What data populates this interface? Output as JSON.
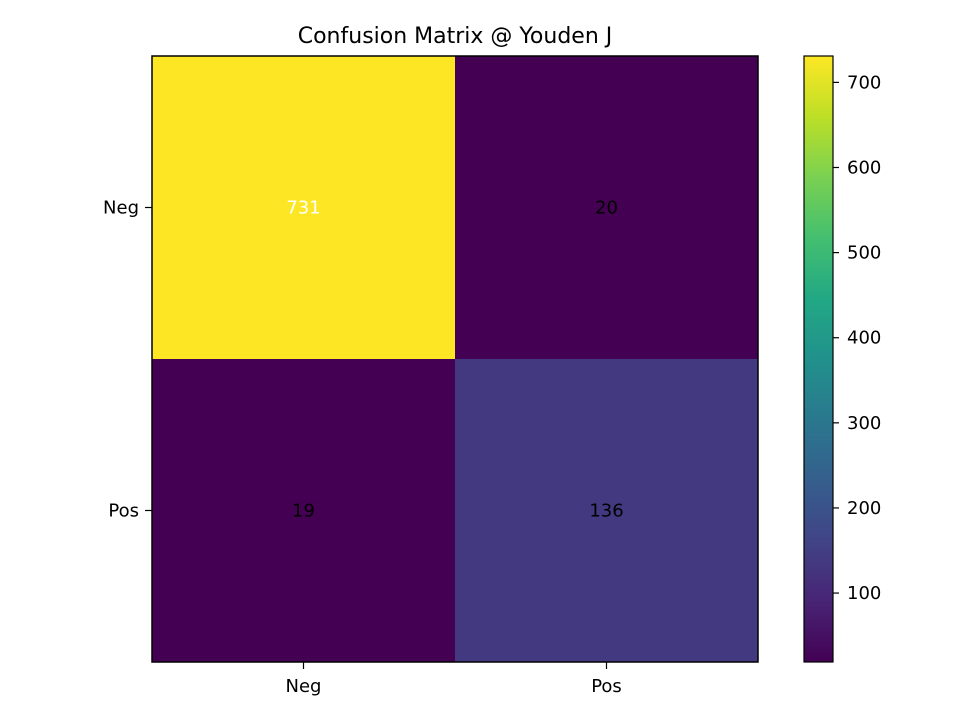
{
  "chart_data": {
    "type": "heatmap",
    "title": "Confusion Matrix @ Youden J",
    "xlabel": "",
    "ylabel": "",
    "x_categories": [
      "Neg",
      "Pos"
    ],
    "y_categories": [
      "Neg",
      "Pos"
    ],
    "values": [
      [
        731,
        20
      ],
      [
        19,
        136
      ]
    ],
    "colormap": "viridis",
    "vmin": 19,
    "vmax": 731,
    "colorbar_ticks": [
      100,
      200,
      300,
      400,
      500,
      600,
      700
    ],
    "grid": false,
    "legend": "colorbar-right"
  }
}
